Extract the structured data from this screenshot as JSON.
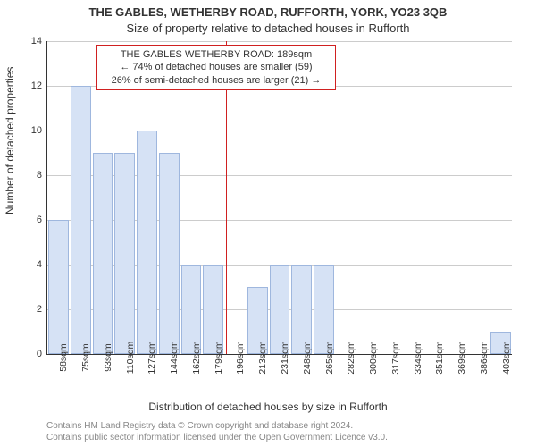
{
  "title_main": "THE GABLES, WETHERBY ROAD, RUFFORTH, YORK, YO23 3QB",
  "title_sub": "Size of property relative to detached houses in Rufforth",
  "y_axis_label": "Number of detached properties",
  "x_axis_label": "Distribution of detached houses by size in Rufforth",
  "footer_line1": "Contains HM Land Registry data © Crown copyright and database right 2024.",
  "footer_line2": "Contains public sector information licensed under the Open Government Licence v3.0.",
  "chart": {
    "type": "histogram",
    "background_color": "#ffffff",
    "grid_color": "#cccccc",
    "axis_color": "#333333",
    "bar_fill": "#d6e2f5",
    "bar_stroke": "#9fb7de",
    "marker_color": "#d02020",
    "ylim": [
      0,
      14
    ],
    "ytick_step": 2,
    "x_categories": [
      "58sqm",
      "75sqm",
      "93sqm",
      "110sqm",
      "127sqm",
      "144sqm",
      "162sqm",
      "179sqm",
      "196sqm",
      "213sqm",
      "231sqm",
      "248sqm",
      "265sqm",
      "282sqm",
      "300sqm",
      "317sqm",
      "334sqm",
      "351sqm",
      "369sqm",
      "386sqm",
      "403sqm"
    ],
    "values": [
      6,
      12,
      9,
      9,
      10,
      9,
      4,
      4,
      0,
      3,
      4,
      4,
      4,
      0,
      0,
      0,
      0,
      0,
      0,
      0,
      1
    ],
    "bar_width_ratio": 0.92,
    "marker_position_sqm": 189,
    "annotation": {
      "line1": "THE GABLES WETHERBY ROAD: 189sqm",
      "line2": "← 74% of detached houses are smaller (59)",
      "line3": "26% of semi-detached houses are larger (21) →",
      "border_color": "#d02020",
      "background": "#ffffff",
      "fontsize": 11
    },
    "title_fontsize": 13,
    "label_fontsize": 12,
    "tick_fontsize": 11
  }
}
